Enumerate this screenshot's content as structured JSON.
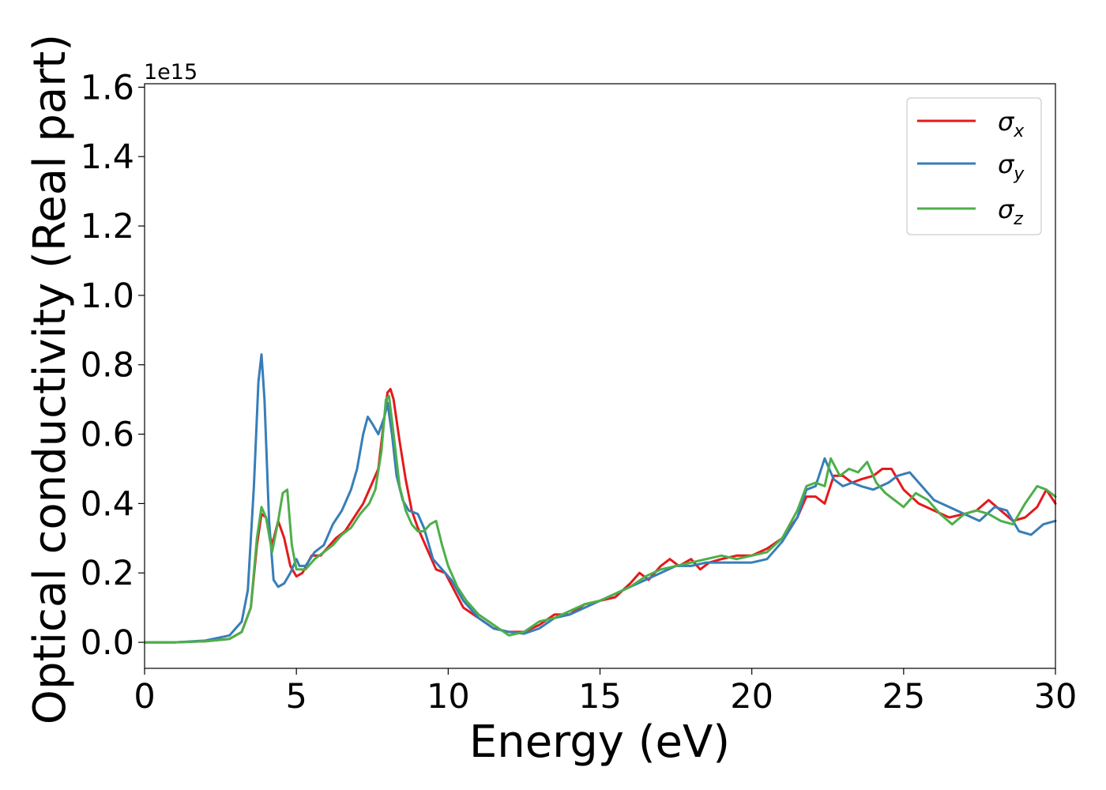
{
  "chart_data": {
    "type": "line",
    "xlabel": "Energy (eV)",
    "ylabel": "Optical conductivity (Real part)",
    "y_offset_text": "1e15",
    "xlim": [
      0,
      30
    ],
    "ylim": [
      -0.075,
      1.61
    ],
    "x_ticks": [
      0,
      5,
      10,
      15,
      20,
      25,
      30
    ],
    "x_tick_labels": [
      "0",
      "5",
      "10",
      "15",
      "20",
      "25",
      "30"
    ],
    "y_ticks": [
      0.0,
      0.2,
      0.4,
      0.6,
      0.8,
      1.0,
      1.2,
      1.4,
      1.6
    ],
    "y_tick_labels": [
      "0.0",
      "0.2",
      "0.4",
      "0.6",
      "0.8",
      "1.0",
      "1.2",
      "1.4",
      "1.6"
    ],
    "grid": false,
    "legend_position": "top-right",
    "series": [
      {
        "name": "σ",
        "subscript": "x",
        "color": "#e41a1c",
        "x": [
          0,
          1,
          2,
          2.8,
          3.2,
          3.5,
          3.7,
          3.85,
          4.0,
          4.2,
          4.4,
          4.6,
          4.8,
          5.0,
          5.2,
          5.5,
          5.8,
          6.0,
          6.3,
          6.6,
          6.9,
          7.2,
          7.5,
          7.7,
          7.9,
          8.0,
          8.1,
          8.2,
          8.4,
          8.6,
          8.8,
          9.0,
          9.3,
          9.6,
          9.9,
          10.2,
          10.5,
          11.0,
          11.5,
          12.0,
          12.5,
          13.0,
          13.5,
          14.0,
          14.5,
          15.0,
          15.5,
          16.0,
          16.3,
          16.6,
          17.0,
          17.3,
          17.6,
          18.0,
          18.3,
          18.6,
          19.0,
          19.5,
          20.0,
          20.5,
          21.0,
          21.5,
          21.8,
          22.1,
          22.4,
          22.7,
          23.0,
          23.3,
          23.6,
          24.0,
          24.3,
          24.6,
          25.0,
          25.5,
          26.0,
          26.5,
          27.0,
          27.4,
          27.8,
          28.2,
          28.6,
          29.0,
          29.4,
          29.7,
          30.0
        ],
        "values": [
          0.0,
          0.0,
          0.003,
          0.01,
          0.03,
          0.1,
          0.28,
          0.37,
          0.36,
          0.28,
          0.35,
          0.3,
          0.22,
          0.19,
          0.2,
          0.25,
          0.25,
          0.27,
          0.3,
          0.32,
          0.36,
          0.4,
          0.46,
          0.5,
          0.65,
          0.72,
          0.73,
          0.7,
          0.58,
          0.47,
          0.38,
          0.33,
          0.27,
          0.21,
          0.2,
          0.15,
          0.1,
          0.07,
          0.04,
          0.03,
          0.03,
          0.05,
          0.08,
          0.08,
          0.11,
          0.12,
          0.13,
          0.17,
          0.2,
          0.18,
          0.22,
          0.24,
          0.22,
          0.24,
          0.21,
          0.23,
          0.24,
          0.25,
          0.25,
          0.27,
          0.3,
          0.36,
          0.42,
          0.42,
          0.4,
          0.48,
          0.48,
          0.46,
          0.47,
          0.48,
          0.5,
          0.5,
          0.44,
          0.4,
          0.38,
          0.36,
          0.37,
          0.38,
          0.41,
          0.38,
          0.35,
          0.36,
          0.39,
          0.44,
          0.4
        ]
      },
      {
        "name": "σ",
        "subscript": "y",
        "color": "#377eb8",
        "x": [
          0,
          1,
          2,
          2.8,
          3.2,
          3.4,
          3.6,
          3.75,
          3.85,
          3.95,
          4.1,
          4.25,
          4.4,
          4.6,
          4.8,
          5.0,
          5.1,
          5.3,
          5.6,
          5.9,
          6.2,
          6.5,
          6.8,
          7.0,
          7.2,
          7.35,
          7.5,
          7.7,
          7.9,
          8.0,
          8.15,
          8.3,
          8.5,
          8.7,
          9.0,
          9.2,
          9.5,
          9.8,
          10.1,
          10.5,
          11.0,
          11.5,
          12.0,
          12.5,
          13.0,
          13.5,
          14.0,
          14.5,
          15.0,
          15.5,
          16.0,
          16.5,
          17.0,
          17.5,
          18.0,
          18.5,
          19.0,
          19.5,
          20.0,
          20.5,
          21.0,
          21.5,
          21.8,
          22.1,
          22.4,
          22.7,
          23.0,
          23.3,
          23.6,
          24.0,
          24.5,
          24.8,
          25.2,
          25.6,
          26.0,
          26.5,
          27.0,
          27.5,
          28.0,
          28.4,
          28.8,
          29.2,
          29.6,
          30.0
        ],
        "values": [
          0.0,
          0.0,
          0.005,
          0.02,
          0.06,
          0.15,
          0.45,
          0.75,
          0.83,
          0.7,
          0.35,
          0.18,
          0.16,
          0.17,
          0.2,
          0.24,
          0.22,
          0.22,
          0.26,
          0.28,
          0.34,
          0.38,
          0.44,
          0.5,
          0.6,
          0.65,
          0.63,
          0.6,
          0.65,
          0.69,
          0.6,
          0.48,
          0.41,
          0.38,
          0.37,
          0.33,
          0.24,
          0.21,
          0.18,
          0.12,
          0.07,
          0.04,
          0.03,
          0.025,
          0.04,
          0.07,
          0.08,
          0.1,
          0.12,
          0.14,
          0.16,
          0.18,
          0.2,
          0.22,
          0.22,
          0.23,
          0.23,
          0.23,
          0.23,
          0.24,
          0.29,
          0.36,
          0.44,
          0.45,
          0.53,
          0.47,
          0.45,
          0.46,
          0.45,
          0.44,
          0.46,
          0.48,
          0.49,
          0.45,
          0.41,
          0.39,
          0.37,
          0.35,
          0.39,
          0.38,
          0.32,
          0.31,
          0.34,
          0.35
        ]
      },
      {
        "name": "σ",
        "subscript": "z",
        "color": "#4daf4a",
        "x": [
          0,
          1,
          2,
          2.8,
          3.2,
          3.5,
          3.7,
          3.85,
          4.0,
          4.2,
          4.4,
          4.55,
          4.7,
          4.85,
          5.0,
          5.3,
          5.6,
          5.9,
          6.2,
          6.5,
          6.8,
          7.1,
          7.4,
          7.6,
          7.8,
          7.95,
          8.05,
          8.2,
          8.4,
          8.6,
          8.8,
          9.0,
          9.2,
          9.4,
          9.6,
          9.8,
          10.0,
          10.3,
          10.6,
          11.0,
          11.5,
          12.0,
          12.5,
          13.0,
          13.5,
          14.0,
          14.5,
          15.0,
          15.5,
          16.0,
          16.5,
          17.0,
          17.5,
          18.0,
          18.5,
          19.0,
          19.5,
          20.0,
          20.5,
          21.0,
          21.5,
          21.8,
          22.1,
          22.4,
          22.6,
          22.9,
          23.2,
          23.5,
          23.8,
          24.1,
          24.4,
          24.7,
          25.0,
          25.4,
          25.8,
          26.2,
          26.6,
          27.0,
          27.4,
          27.8,
          28.2,
          28.6,
          29.0,
          29.4,
          29.7,
          30.0
        ],
        "values": [
          0.0,
          0.0,
          0.003,
          0.01,
          0.03,
          0.1,
          0.3,
          0.39,
          0.36,
          0.26,
          0.35,
          0.43,
          0.44,
          0.28,
          0.21,
          0.21,
          0.24,
          0.26,
          0.28,
          0.31,
          0.33,
          0.37,
          0.4,
          0.44,
          0.55,
          0.7,
          0.71,
          0.6,
          0.45,
          0.38,
          0.34,
          0.32,
          0.32,
          0.34,
          0.35,
          0.28,
          0.22,
          0.16,
          0.12,
          0.08,
          0.05,
          0.02,
          0.03,
          0.06,
          0.07,
          0.09,
          0.11,
          0.12,
          0.14,
          0.16,
          0.19,
          0.21,
          0.22,
          0.23,
          0.24,
          0.25,
          0.24,
          0.25,
          0.26,
          0.3,
          0.38,
          0.45,
          0.46,
          0.45,
          0.53,
          0.48,
          0.5,
          0.49,
          0.52,
          0.46,
          0.43,
          0.41,
          0.39,
          0.43,
          0.41,
          0.37,
          0.34,
          0.37,
          0.38,
          0.37,
          0.35,
          0.34,
          0.4,
          0.45,
          0.44,
          0.42
        ]
      }
    ]
  }
}
